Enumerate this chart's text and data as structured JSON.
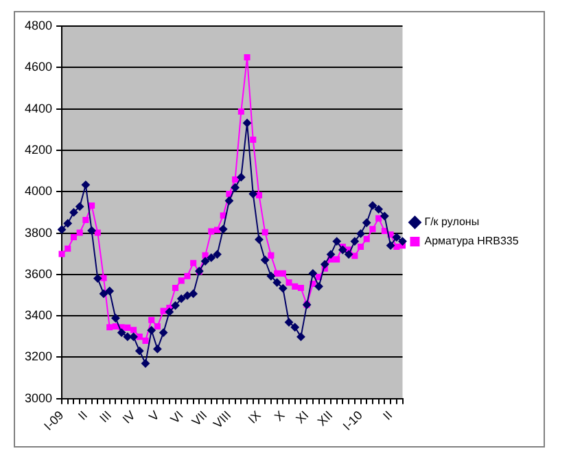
{
  "chart_data": {
    "type": "line",
    "categories": [
      "I-09",
      null,
      null,
      null,
      "II",
      null,
      null,
      null,
      "III",
      null,
      null,
      null,
      "IV",
      null,
      null,
      null,
      "V",
      null,
      null,
      null,
      "VI",
      null,
      null,
      null,
      "VII",
      null,
      null,
      null,
      "VIII",
      null,
      null,
      null,
      null,
      "IX",
      null,
      null,
      null,
      "X",
      null,
      null,
      null,
      "XI",
      null,
      null,
      null,
      "XII",
      null,
      null,
      null,
      null,
      "I-10",
      null,
      null,
      null,
      null,
      "II",
      null,
      null
    ],
    "series": [
      {
        "name": "Г/к рулоны",
        "color": "#000066",
        "marker": "diamond",
        "values": [
          3817,
          3847,
          3900,
          3928,
          4033,
          3812,
          3581,
          3507,
          3520,
          3389,
          3319,
          3299,
          3299,
          3231,
          3170,
          3330,
          3240,
          3319,
          3419,
          3450,
          3483,
          3498,
          3507,
          3616,
          3664,
          3681,
          3697,
          3819,
          3956,
          4020,
          4070,
          4332,
          3989,
          3769,
          3670,
          3592,
          3561,
          3533,
          3369,
          3345,
          3299,
          3454,
          3605,
          3542,
          3649,
          3697,
          3760,
          3719,
          3697,
          3760,
          3797,
          3850,
          3933,
          3915,
          3882,
          3740,
          3780,
          3760
        ]
      },
      {
        "name": "Арматура HRB335",
        "color": "#ff00ff",
        "marker": "square",
        "values": [
          3699,
          3725,
          3780,
          3802,
          3863,
          3933,
          3802,
          3583,
          3345,
          3349,
          3345,
          3343,
          3332,
          3299,
          3280,
          3380,
          3349,
          3424,
          3439,
          3535,
          3570,
          3592,
          3655,
          3614,
          3692,
          3808,
          3815,
          3885,
          3989,
          4059,
          4387,
          4649,
          4251,
          3983,
          3804,
          3692,
          3605,
          3605,
          3561,
          3542,
          3535,
          3454,
          3555,
          3588,
          3629,
          3673,
          3673,
          3734,
          3720,
          3690,
          3734,
          3771,
          3819,
          3871,
          3810,
          3793,
          3734,
          3740
        ]
      }
    ],
    "ylim": [
      3000,
      4800
    ],
    "yticks": [
      3000,
      3200,
      3400,
      3600,
      3800,
      4000,
      4200,
      4400,
      4600,
      4800
    ],
    "grid": "y",
    "legend": "right",
    "line_style": "solid"
  }
}
